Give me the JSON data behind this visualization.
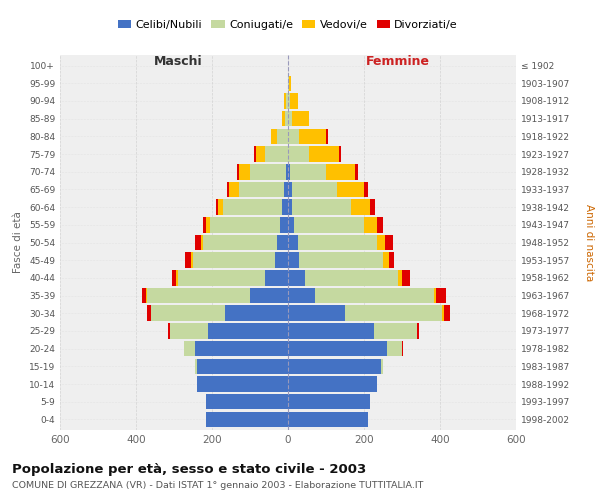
{
  "age_groups": [
    "0-4",
    "5-9",
    "10-14",
    "15-19",
    "20-24",
    "25-29",
    "30-34",
    "35-39",
    "40-44",
    "45-49",
    "50-54",
    "55-59",
    "60-64",
    "65-69",
    "70-74",
    "75-79",
    "80-84",
    "85-89",
    "90-94",
    "95-99",
    "100+"
  ],
  "birth_years": [
    "1998-2002",
    "1993-1997",
    "1988-1992",
    "1983-1987",
    "1978-1982",
    "1973-1977",
    "1968-1972",
    "1963-1967",
    "1958-1962",
    "1953-1957",
    "1948-1952",
    "1943-1947",
    "1938-1942",
    "1933-1937",
    "1928-1932",
    "1923-1927",
    "1918-1922",
    "1913-1917",
    "1908-1912",
    "1903-1907",
    "≤ 1902"
  ],
  "males": {
    "celibe": [
      215,
      215,
      240,
      240,
      245,
      210,
      165,
      100,
      60,
      35,
      30,
      20,
      15,
      10,
      5,
      0,
      0,
      0,
      0,
      0,
      0
    ],
    "coniugato": [
      0,
      0,
      0,
      5,
      30,
      100,
      195,
      270,
      230,
      215,
      195,
      185,
      155,
      120,
      95,
      60,
      30,
      8,
      5,
      0,
      0
    ],
    "vedovo": [
      0,
      0,
      0,
      0,
      0,
      0,
      0,
      5,
      5,
      5,
      5,
      10,
      15,
      25,
      30,
      25,
      15,
      8,
      5,
      0,
      0
    ],
    "divorziato": [
      0,
      0,
      0,
      0,
      0,
      5,
      10,
      10,
      10,
      15,
      15,
      10,
      5,
      5,
      5,
      5,
      0,
      0,
      0,
      0,
      0
    ]
  },
  "females": {
    "nubile": [
      210,
      215,
      235,
      245,
      260,
      225,
      150,
      70,
      45,
      30,
      25,
      15,
      10,
      10,
      5,
      0,
      0,
      0,
      0,
      0,
      0
    ],
    "coniugata": [
      0,
      0,
      0,
      5,
      40,
      115,
      255,
      315,
      245,
      220,
      210,
      185,
      155,
      120,
      95,
      55,
      30,
      10,
      5,
      2,
      0
    ],
    "vedova": [
      0,
      0,
      0,
      0,
      0,
      0,
      5,
      5,
      10,
      15,
      20,
      35,
      50,
      70,
      75,
      80,
      70,
      45,
      20,
      5,
      0
    ],
    "divorziata": [
      0,
      0,
      0,
      0,
      2,
      5,
      15,
      25,
      20,
      15,
      20,
      15,
      15,
      10,
      10,
      5,
      5,
      0,
      0,
      0,
      0
    ]
  },
  "colors": {
    "celibe": "#4472c4",
    "coniugato": "#c5d9a0",
    "vedovo": "#ffc000",
    "divorziato": "#e00000"
  },
  "title": "Popolazione per età, sesso e stato civile - 2003",
  "subtitle": "COMUNE DI GREZZANA (VR) - Dati ISTAT 1° gennaio 2003 - Elaborazione TUTTITALIA.IT",
  "xlabel_left": "Maschi",
  "xlabel_right": "Femmine",
  "ylabel_left": "Fasce di età",
  "ylabel_right": "Anni di nascita",
  "xlim": 600,
  "bg_color": "#ffffff",
  "plot_bg": "#efefef",
  "grid_color": "#cccccc",
  "legend_labels": [
    "Celibi/Nubili",
    "Coniugati/e",
    "Vedovi/e",
    "Divorziati/e"
  ]
}
